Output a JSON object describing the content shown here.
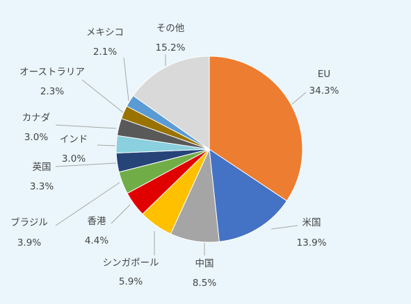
{
  "chart_data": {
    "type": "pie",
    "slices": [
      {
        "label": "EU",
        "value": 34.3,
        "display": "34.3%",
        "color": "#ed7d31"
      },
      {
        "label": "米国",
        "value": 13.9,
        "display": "13.9%",
        "color": "#4472c4"
      },
      {
        "label": "中国",
        "value": 8.5,
        "display": "8.5%",
        "color": "#a5a5a5"
      },
      {
        "label": "シンガポール",
        "value": 5.9,
        "display": "5.9%",
        "color": "#ffc000"
      },
      {
        "label": "香港",
        "value": 4.4,
        "display": "4.4%",
        "color": "#e00000"
      },
      {
        "label": "ブラジル",
        "value": 3.9,
        "display": "3.9%",
        "color": "#70ad47"
      },
      {
        "label": "英国",
        "value": 3.3,
        "display": "3.3%",
        "color": "#264478"
      },
      {
        "label": "インド",
        "value": 3.0,
        "display": "3.0%",
        "color": "#8ad0de"
      },
      {
        "label": "カナダ",
        "value": 3.0,
        "display": "3.0%",
        "color": "#595959"
      },
      {
        "label": "オーストラリア",
        "value": 2.3,
        "display": "2.3%",
        "color": "#997300"
      },
      {
        "label": "メキシコ",
        "value": 2.1,
        "display": "2.1%",
        "color": "#5b9bd5"
      },
      {
        "label": "その他",
        "value": 15.2,
        "display": "15.2%",
        "color": "#d9d9d9"
      }
    ]
  }
}
